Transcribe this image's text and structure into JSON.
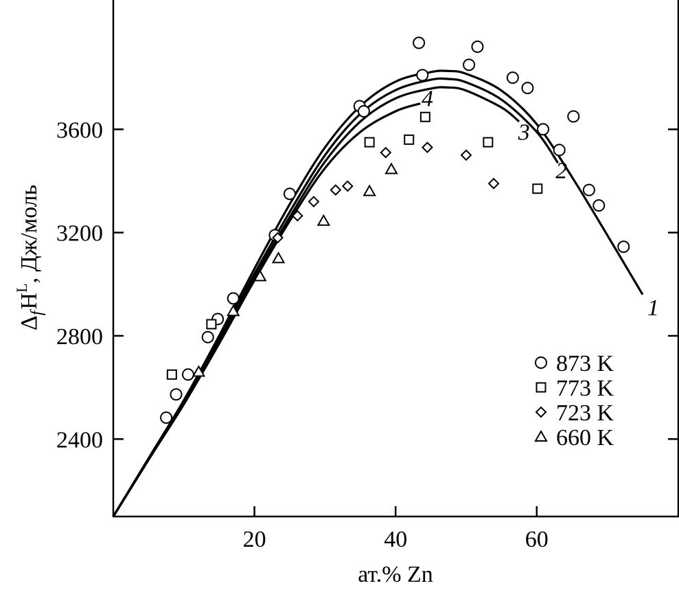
{
  "chart_data": {
    "type": "scatter",
    "title": "",
    "xlabel": "ат.% Zn",
    "ylabel": {
      "base": "Δ",
      "sub": "f",
      "main": "H",
      "sup": "L",
      "rest": ", Дж/моль"
    },
    "xlim": [
      0,
      80
    ],
    "ylim": [
      2100,
      4000
    ],
    "xticks": [
      20,
      40,
      60
    ],
    "yticks": [
      2400,
      2800,
      3200,
      3600
    ],
    "grid": false,
    "legend_position": "bottom-right",
    "series": [
      {
        "name": "873 K",
        "marker": "circle",
        "x": [
          7.5,
          8.9,
          10.6,
          13.4,
          14.8,
          17.0,
          22.9,
          25.0,
          34.9,
          35.5,
          43.3,
          43.8,
          50.4,
          51.6,
          56.6,
          58.7,
          60.9,
          63.2,
          65.2,
          67.4,
          68.8,
          72.3
        ],
        "y": [
          2483,
          2573,
          2650,
          2795,
          2865,
          2945,
          3190,
          3350,
          3690,
          3670,
          3935,
          3810,
          3850,
          3920,
          3800,
          3760,
          3600,
          3520,
          3650,
          3365,
          3305,
          3145
        ]
      },
      {
        "name": "773 K",
        "marker": "square",
        "x": [
          8.3,
          13.9,
          36.3,
          41.9,
          44.2,
          53.1,
          60.1
        ],
        "y": [
          2650,
          2845,
          3550,
          3560,
          3648,
          3550,
          3370
        ]
      },
      {
        "name": "723 K",
        "marker": "diamond",
        "x": [
          23.3,
          26.1,
          28.4,
          31.5,
          33.2,
          38.6,
          44.5,
          50.0,
          53.9
        ],
        "y": [
          3180,
          3265,
          3320,
          3365,
          3380,
          3510,
          3530,
          3500,
          3390
        ]
      },
      {
        "name": "660 K",
        "marker": "triangle",
        "x": [
          12.1,
          17.0,
          20.8,
          23.4,
          29.8,
          36.3,
          39.4
        ],
        "y": [
          2660,
          2895,
          3030,
          3100,
          3245,
          3360,
          3445
        ]
      }
    ],
    "curves": [
      {
        "label": "1",
        "x": [
          0,
          5,
          10,
          15,
          20,
          25,
          30,
          35,
          40,
          45,
          47.5,
          50,
          55,
          60,
          65,
          70,
          75
        ],
        "y": [
          2100,
          2325,
          2550,
          2800,
          3060,
          3310,
          3530,
          3690,
          3785,
          3822,
          3826,
          3815,
          3750,
          3620,
          3415,
          3190,
          2960
        ]
      },
      {
        "label": "2",
        "x": [
          0,
          5,
          10,
          15,
          20,
          25,
          30,
          35,
          40,
          45,
          47.5,
          50,
          55,
          60,
          63
        ],
        "y": [
          2100,
          2325,
          2550,
          2790,
          3040,
          3280,
          3500,
          3660,
          3752,
          3792,
          3795,
          3782,
          3715,
          3590,
          3470
        ]
      },
      {
        "label": "3",
        "x": [
          0,
          5,
          10,
          15,
          20,
          25,
          30,
          35,
          40,
          45,
          47.5,
          50,
          55,
          57.5
        ],
        "y": [
          2100,
          2320,
          2540,
          2780,
          3025,
          3260,
          3475,
          3630,
          3720,
          3758,
          3762,
          3750,
          3685,
          3630
        ]
      },
      {
        "label": "4",
        "x": [
          0,
          5,
          10,
          15,
          20,
          25,
          30,
          35,
          40,
          43.5
        ],
        "y": [
          2100,
          2320,
          2535,
          2770,
          3015,
          3245,
          3450,
          3590,
          3670,
          3700
        ]
      }
    ],
    "curve_labels": [
      {
        "text": "1",
        "x": 76.5,
        "y": 2880
      },
      {
        "text": "2",
        "x": 63.5,
        "y": 3410
      },
      {
        "text": "3",
        "x": 58.2,
        "y": 3560
      },
      {
        "text": "4",
        "x": 44.5,
        "y": 3690
      }
    ]
  }
}
